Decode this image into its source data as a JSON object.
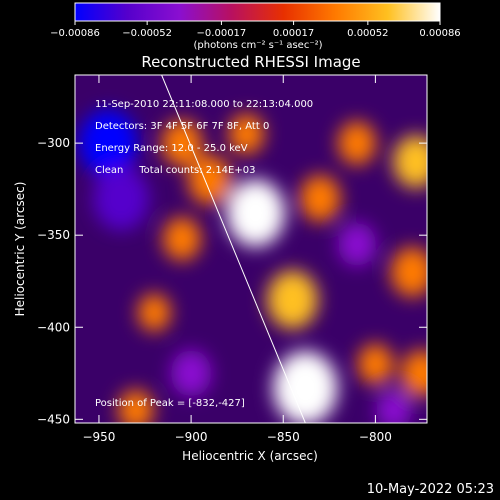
{
  "chart_data": {
    "type": "heatmap",
    "title": "Reconstructed RHESSI Image",
    "xlabel": "Heliocentric X (arcsec)",
    "ylabel": "Heliocentric Y (arcsec)",
    "xlim": [
      -963,
      -772
    ],
    "ylim": [
      -452,
      -263
    ],
    "x_ticks": [
      -950,
      -900,
      -850,
      -800
    ],
    "x_tick_labels": [
      "−950",
      "−900",
      "−850",
      "−800"
    ],
    "y_ticks": [
      -300,
      -350,
      -400,
      -450
    ],
    "y_tick_labels": [
      "−300",
      "−350",
      "−400",
      "−450"
    ],
    "colorbar": {
      "min": -0.00086,
      "max": 0.00086,
      "ticks": [
        -0.00086,
        -0.00052,
        -0.00017,
        0.00017,
        0.00052,
        0.00086
      ],
      "tick_labels": [
        "−0.00086",
        "−0.00052",
        "−0.00017",
        "0.00017",
        "0.00052",
        "0.00086"
      ],
      "unit_label": "(photons cm⁻² s⁻¹ asec⁻²)",
      "colors": [
        "#0000ff",
        "#5500cc",
        "#8a0fd0",
        "#b81060",
        "#e83000",
        "#ff7a00",
        "#ffc020",
        "#ffffff"
      ]
    },
    "sources": [
      {
        "x": -865,
        "y": -338,
        "value": 0.00075
      },
      {
        "x": -838,
        "y": -433,
        "value": 0.00086
      },
      {
        "x": -845,
        "y": -385,
        "value": 0.0006
      },
      {
        "x": -890,
        "y": -320,
        "value": 0.00045
      },
      {
        "x": -905,
        "y": -300,
        "value": 0.0004
      },
      {
        "x": -905,
        "y": -352,
        "value": 0.00035
      },
      {
        "x": -920,
        "y": -392,
        "value": 0.00025
      },
      {
        "x": -870,
        "y": -295,
        "value": 0.0003
      },
      {
        "x": -830,
        "y": -330,
        "value": 0.0004
      },
      {
        "x": -778,
        "y": -310,
        "value": 0.0005
      },
      {
        "x": -780,
        "y": -370,
        "value": 0.00045
      },
      {
        "x": -810,
        "y": -300,
        "value": 0.00035
      },
      {
        "x": -930,
        "y": -445,
        "value": 0.0003
      },
      {
        "x": -775,
        "y": -425,
        "value": 0.0004
      },
      {
        "x": -800,
        "y": -420,
        "value": 0.0003
      },
      {
        "x": -945,
        "y": -300,
        "value": -0.00075
      },
      {
        "x": -938,
        "y": -330,
        "value": -0.0007
      },
      {
        "x": -900,
        "y": -425,
        "value": -0.0004
      },
      {
        "x": -810,
        "y": -355,
        "value": -0.00035
      },
      {
        "x": -790,
        "y": -445,
        "value": -0.0003
      }
    ],
    "limb_line": [
      [
        -916,
        -263
      ],
      [
        -838,
        -452
      ]
    ],
    "grid": false,
    "legend": "none"
  },
  "annotation": {
    "time": "11-Sep-2010 22:11:08.000 to 22:13:04.000",
    "detectors": "Detectors: 3F 4F 5F 6F 7F 8F, Att 0",
    "energy": "Energy Range: 12.0 - 25.0 keV",
    "clean": "Clean     Total counts: 2.14E+03",
    "peak": "Position of Peak = [-832,-427]"
  },
  "footer_date": "10-May-2022 05:23"
}
